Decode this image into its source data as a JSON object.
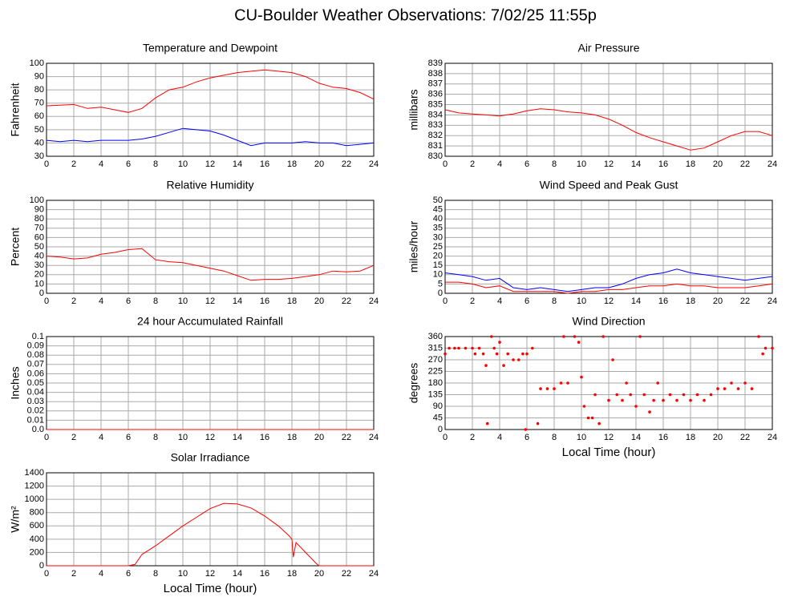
{
  "title": "CU-Boulder Weather Observations: 7/02/25 11:55p",
  "chart_data": [
    {
      "type": "line",
      "title": "Temperature and Dewpoint",
      "ylabel": "Fahrenheit",
      "x": [
        0,
        1,
        2,
        3,
        4,
        5,
        6,
        7,
        8,
        9,
        10,
        11,
        12,
        13,
        14,
        15,
        16,
        17,
        18,
        19,
        20,
        21,
        22,
        23,
        24
      ],
      "xlim": [
        0,
        24
      ],
      "xticks": [
        0,
        2,
        4,
        6,
        8,
        10,
        12,
        14,
        16,
        18,
        20,
        22,
        24
      ],
      "ylim": [
        30,
        100
      ],
      "yticks": [
        30,
        40,
        50,
        60,
        70,
        80,
        90,
        100
      ],
      "grid": true,
      "series": [
        {
          "color": "#ff0000",
          "values": [
            68,
            68.5,
            69,
            66,
            67,
            65,
            63,
            66,
            74,
            80,
            82,
            86,
            89,
            91,
            93,
            94,
            95,
            94,
            93,
            90,
            85,
            82,
            81,
            78,
            73
          ]
        },
        {
          "color": "#0000ff",
          "values": [
            42,
            41,
            42,
            41,
            42,
            42,
            42,
            43,
            45,
            48,
            51,
            50,
            49,
            46,
            42,
            38,
            40,
            40,
            40,
            41,
            40,
            40,
            38,
            39,
            40
          ]
        }
      ]
    },
    {
      "type": "line",
      "title": "Air Pressure",
      "ylabel": "millibars",
      "x": [
        0,
        1,
        2,
        3,
        4,
        5,
        6,
        7,
        8,
        9,
        10,
        11,
        12,
        13,
        14,
        15,
        16,
        17,
        18,
        19,
        20,
        21,
        22,
        23,
        24
      ],
      "xlim": [
        0,
        24
      ],
      "xticks": [
        0,
        2,
        4,
        6,
        8,
        10,
        12,
        14,
        16,
        18,
        20,
        22,
        24
      ],
      "ylim": [
        830,
        839
      ],
      "yticks": [
        830,
        831,
        832,
        833,
        834,
        835,
        836,
        837,
        838,
        839
      ],
      "grid": true,
      "series": [
        {
          "color": "#ff0000",
          "values": [
            834.5,
            834.2,
            834.1,
            834.0,
            833.9,
            834.1,
            834.4,
            834.6,
            834.5,
            834.3,
            834.2,
            834.0,
            833.6,
            833.0,
            832.3,
            831.8,
            831.4,
            831.0,
            830.6,
            830.8,
            831.4,
            832.0,
            832.4,
            832.4,
            832.0
          ]
        }
      ]
    },
    {
      "type": "line",
      "title": "Relative Humidity",
      "ylabel": "Percent",
      "x": [
        0,
        1,
        2,
        3,
        4,
        5,
        6,
        7,
        8,
        9,
        10,
        11,
        12,
        13,
        14,
        15,
        16,
        17,
        18,
        19,
        20,
        21,
        22,
        23,
        24
      ],
      "xlim": [
        0,
        24
      ],
      "xticks": [
        0,
        2,
        4,
        6,
        8,
        10,
        12,
        14,
        16,
        18,
        20,
        22,
        24
      ],
      "ylim": [
        0,
        100
      ],
      "yticks": [
        0,
        10,
        20,
        30,
        40,
        50,
        60,
        70,
        80,
        90,
        100
      ],
      "grid": true,
      "series": [
        {
          "color": "#ff0000",
          "values": [
            40,
            39,
            37,
            38,
            42,
            44,
            47,
            48,
            36,
            34,
            33,
            30,
            27,
            24,
            19,
            14,
            15,
            15,
            16,
            18,
            20,
            24,
            23,
            24,
            30
          ]
        }
      ]
    },
    {
      "type": "line",
      "title": "Wind Speed and Peak Gust",
      "ylabel": "miles/hour",
      "x": [
        0,
        1,
        2,
        3,
        4,
        5,
        6,
        7,
        8,
        9,
        10,
        11,
        12,
        13,
        14,
        15,
        16,
        17,
        18,
        19,
        20,
        21,
        22,
        23,
        24
      ],
      "xlim": [
        0,
        24
      ],
      "xticks": [
        0,
        2,
        4,
        6,
        8,
        10,
        12,
        14,
        16,
        18,
        20,
        22,
        24
      ],
      "ylim": [
        0,
        50
      ],
      "yticks": [
        0,
        5,
        10,
        15,
        20,
        25,
        30,
        35,
        40,
        45,
        50
      ],
      "grid": true,
      "series": [
        {
          "color": "#0000ff",
          "values": [
            11,
            10,
            9,
            7,
            8,
            3,
            2,
            3,
            2,
            1,
            2,
            3,
            3,
            5,
            8,
            10,
            11,
            13,
            11,
            10,
            9,
            8,
            7,
            8,
            9
          ]
        },
        {
          "color": "#ff0000",
          "values": [
            6,
            6,
            5,
            3,
            4,
            1,
            1,
            1,
            1,
            0,
            1,
            1,
            2,
            2,
            3,
            4,
            4,
            5,
            4,
            4,
            3,
            3,
            3,
            4,
            5
          ]
        }
      ]
    },
    {
      "type": "line",
      "title": "24 hour Accumulated Rainfall",
      "ylabel": "Inches",
      "x": [
        0,
        24
      ],
      "xlim": [
        0,
        24
      ],
      "xticks": [
        0,
        2,
        4,
        6,
        8,
        10,
        12,
        14,
        16,
        18,
        20,
        22,
        24
      ],
      "ylim": [
        0,
        0.1
      ],
      "yticks": [
        {
          "value": 0,
          "label": "0.0"
        },
        0.01,
        0.02,
        0.03,
        0.04,
        0.05,
        0.06,
        0.07,
        0.08,
        0.09,
        0.1
      ],
      "grid": true,
      "series": [
        {
          "color": "#ff0000",
          "values": [
            0,
            0
          ]
        }
      ]
    },
    {
      "type": "scatter",
      "title": "Wind Direction",
      "ylabel": "degrees",
      "xlabel": "Local Time (hour)",
      "x": [
        0,
        0.3,
        0.7,
        1,
        1.5,
        2,
        2.2,
        2.5,
        2.8,
        3,
        3.1,
        3.4,
        3.6,
        3.8,
        4,
        4.3,
        4.6,
        5,
        5.4,
        5.7,
        5.9,
        6,
        6.4,
        6.8,
        7,
        7.5,
        8,
        8.5,
        8.7,
        9,
        9.5,
        9.8,
        10,
        10.2,
        10.5,
        10.8,
        11,
        11.3,
        11.6,
        12,
        12.3,
        12.6,
        13,
        13.3,
        13.6,
        14,
        14.3,
        14.6,
        15,
        15.3,
        15.6,
        16,
        16.5,
        17,
        17.5,
        18,
        18.5,
        19,
        19.5,
        20,
        20.5,
        21,
        21.5,
        22,
        22.5,
        23,
        23.3,
        23.5,
        24
      ],
      "values": [
        293,
        315,
        315,
        315,
        315,
        315,
        293,
        315,
        293,
        248,
        23,
        360,
        315,
        293,
        338,
        248,
        293,
        270,
        270,
        293,
        0,
        293,
        315,
        23,
        158,
        158,
        158,
        180,
        360,
        180,
        360,
        338,
        203,
        90,
        45,
        45,
        135,
        23,
        360,
        113,
        270,
        135,
        113,
        180,
        135,
        90,
        360,
        135,
        68,
        113,
        180,
        113,
        135,
        113,
        135,
        113,
        135,
        113,
        135,
        158,
        158,
        180,
        158,
        180,
        158,
        360,
        293,
        315,
        315
      ],
      "color": "#ff0000",
      "xlim": [
        0,
        24
      ],
      "xticks": [
        0,
        2,
        4,
        6,
        8,
        10,
        12,
        14,
        16,
        18,
        20,
        22,
        24
      ],
      "ylim": [
        0,
        360
      ],
      "yticks": [
        0,
        45,
        90,
        135,
        180,
        225,
        270,
        315,
        360
      ],
      "grid": true
    },
    {
      "type": "line",
      "title": "Solar Irradiance",
      "ylabel": "W/m²",
      "xlabel": "Local Time (hour)",
      "x": [
        0,
        6,
        6.5,
        7,
        8,
        9,
        10,
        11,
        12,
        13,
        14,
        15,
        16,
        17,
        17.8,
        18,
        18.1,
        18.3,
        19,
        19.8,
        20,
        24
      ],
      "xlim": [
        0,
        24
      ],
      "xticks": [
        0,
        2,
        4,
        6,
        8,
        10,
        12,
        14,
        16,
        18,
        20,
        22,
        24
      ],
      "ylim": [
        0,
        1400
      ],
      "yticks": [
        0,
        200,
        400,
        600,
        800,
        1000,
        1200,
        1400
      ],
      "grid": true,
      "series": [
        {
          "color": "#ff0000",
          "values": [
            0,
            0,
            20,
            170,
            300,
            450,
            600,
            730,
            860,
            940,
            930,
            870,
            750,
            600,
            450,
            400,
            130,
            350,
            200,
            30,
            0,
            0
          ]
        }
      ]
    }
  ]
}
